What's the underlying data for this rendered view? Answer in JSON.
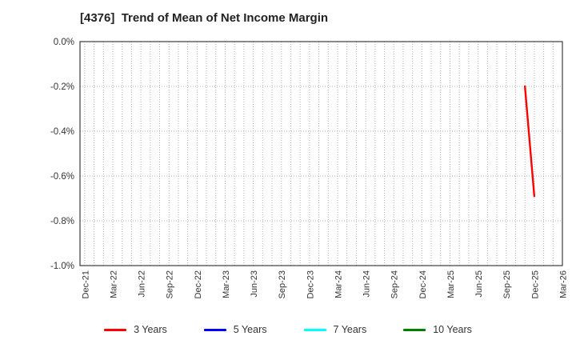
{
  "chart_data": {
    "type": "line",
    "title": "[4376]  Trend of Mean of Net Income Margin",
    "x_axis": {
      "tick_labels": [
        "Dec-21",
        "Mar-22",
        "Jun-22",
        "Sep-22",
        "Dec-22",
        "Mar-23",
        "Jun-23",
        "Sep-23",
        "Dec-23",
        "Mar-24",
        "Jun-24",
        "Sep-24",
        "Dec-24",
        "Mar-25",
        "Jun-25",
        "Sep-25",
        "Dec-25",
        "Mar-26"
      ],
      "months_per_tick": 3,
      "months_total": 51,
      "minor_grid": "monthly"
    },
    "y_axis": {
      "min": -1.0,
      "max": 0.0,
      "tick_step": 0.2,
      "unit": "%",
      "tick_labels": [
        "0.0%",
        "-0.2%",
        "-0.4%",
        "-0.6%",
        "-0.8%",
        "-1.0%"
      ]
    },
    "grid": {
      "style": "dotted",
      "color": "#b0b0b0"
    },
    "series": [
      {
        "name": "3 Years",
        "color": "#ff0000",
        "points": [
          {
            "x_label": "Nov-25",
            "month_index": 47,
            "value_pct": -0.2
          },
          {
            "x_label": "Dec-25",
            "month_index": 48,
            "value_pct": -0.69
          }
        ]
      },
      {
        "name": "5 Years",
        "color": "#0000ff",
        "points": []
      },
      {
        "name": "7 Years",
        "color": "#00ffff",
        "points": []
      },
      {
        "name": "10 Years",
        "color": "#008000",
        "points": []
      }
    ],
    "legend": {
      "position": "bottom-center",
      "items": [
        "3 Years",
        "5 Years",
        "7 Years",
        "10 Years"
      ]
    }
  }
}
